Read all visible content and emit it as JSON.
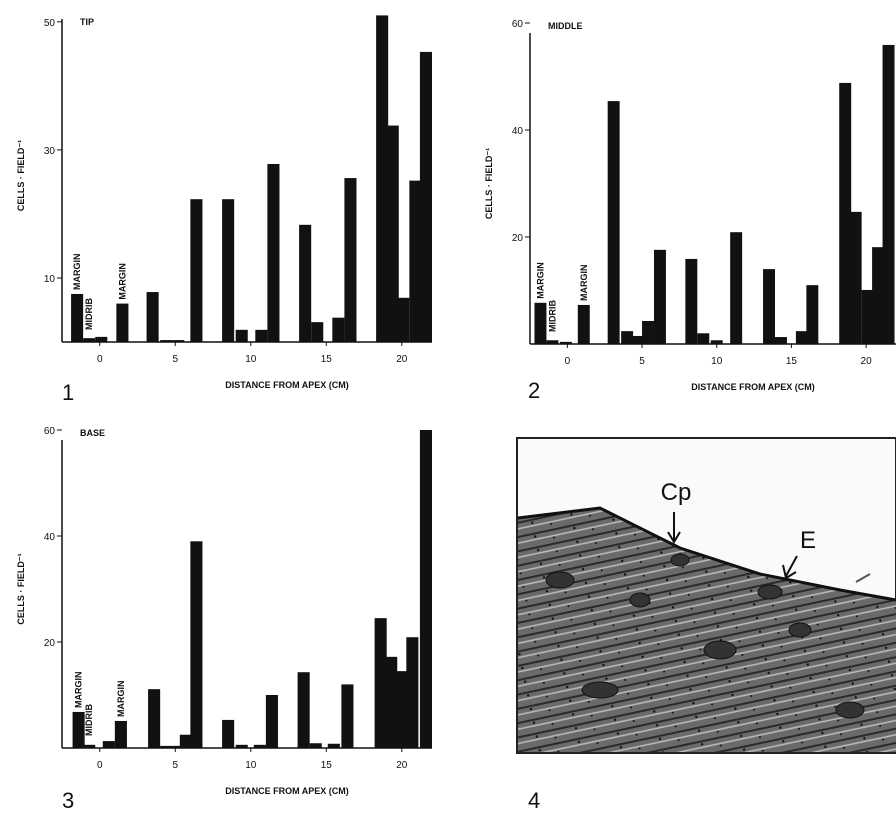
{
  "chart_data": [
    {
      "type": "bar",
      "panel": "1",
      "title": "TIP",
      "y_label": "CELLS · FIELD⁻¹",
      "x_label": "DISTANCE FROM APEX (CM)",
      "annotations": [
        "MARGIN",
        "MIDRIB",
        "MARGIN"
      ],
      "color": "#111111",
      "x": [
        -1.5,
        -0.7,
        0.1,
        1.5,
        3.5,
        4.4,
        5.2,
        6.4,
        8.5,
        9.4,
        10.7,
        11.5,
        13.6,
        14.4,
        15.8,
        16.6,
        18.7,
        19.4,
        20.1,
        20.9,
        21.6
      ],
      "values": [
        7.5,
        0.6,
        0.8,
        6,
        7.8,
        0.3,
        0.3,
        22.3,
        22.3,
        1.9,
        1.9,
        27.8,
        18.3,
        3.1,
        3.8,
        25.6,
        51,
        33.8,
        6.9,
        25.2,
        45.3
      ],
      "xlim": [
        -2.5,
        22
      ],
      "xticks": [
        0,
        5,
        10,
        15,
        20
      ],
      "ylim": [
        0,
        52
      ],
      "yticks": [
        10,
        30,
        50
      ]
    },
    {
      "type": "bar",
      "panel": "2",
      "title": "MIDDLE",
      "y_label": "CELLS · FIELD⁻¹",
      "x_label": "DISTANCE FROM APEX (CM)",
      "annotations": [
        "MARGIN",
        "MIDRIB",
        "MARGIN"
      ],
      "color": "#111111",
      "x": [
        -1.8,
        -1.0,
        -0.1,
        1.1,
        3.1,
        4.0,
        4.7,
        5.4,
        6.2,
        8.3,
        9.1,
        10.0,
        11.3,
        13.5,
        14.3,
        15.7,
        16.4,
        18.6,
        19.3,
        20.1,
        20.8,
        21.5
      ],
      "values": [
        7.7,
        0.7,
        0.4,
        7.3,
        45.4,
        2.4,
        1.5,
        4.3,
        17.6,
        15.9,
        2,
        0.7,
        20.9,
        14,
        1.3,
        2.4,
        11,
        48.8,
        24.7,
        10.1,
        18.1,
        55.9
      ],
      "xlim": [
        -2.5,
        22
      ],
      "xticks": [
        0,
        5,
        10,
        15,
        20
      ],
      "ylim": [
        0,
        60
      ],
      "yticks": [
        20,
        40,
        60
      ]
    },
    {
      "type": "bar",
      "panel": "3",
      "title": "BASE",
      "y_label": "CELLS · FIELD⁻¹",
      "x_label": "DISTANCE FROM APEX (CM)",
      "annotations": [
        "MARGIN",
        "MIDRIB",
        "MARGIN"
      ],
      "color": "#111111",
      "x": [
        -1.4,
        -0.7,
        0.6,
        1.4,
        3.6,
        4.4,
        5.2,
        5.7,
        6.4,
        8.5,
        9.4,
        10.6,
        11.4,
        13.5,
        14.3,
        15.5,
        16.4,
        18.6,
        19.3,
        20.0,
        20.7,
        21.6
      ],
      "values": [
        6.8,
        0.6,
        1.3,
        5.1,
        11.1,
        0.4,
        0.4,
        2.5,
        39,
        5.3,
        0.6,
        0.6,
        10,
        14.3,
        0.9,
        0.8,
        12,
        24.5,
        17.2,
        14.5,
        20.9,
        60
      ],
      "xlim": [
        -2.5,
        22
      ],
      "xticks": [
        0,
        5,
        10,
        15,
        20
      ],
      "ylim": [
        0,
        60
      ],
      "yticks": [
        20,
        40,
        60
      ]
    }
  ],
  "figure_4": {
    "panel": "4",
    "labels": [
      "Cp",
      "E"
    ]
  }
}
